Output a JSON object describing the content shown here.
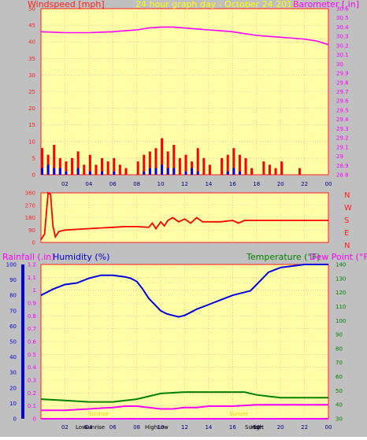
{
  "colors": {
    "plot_bg": "#ffffa8",
    "frame": "#c0c0c0",
    "grid": "#ff9a9a",
    "axis": "#ff2020",
    "wind": "#ff0000",
    "gust": "#0000ff",
    "baro": "#ff00ff",
    "humidity": "#0000e0",
    "temperature": "#008000",
    "dew_point": "#ff00ff",
    "rain": "#ff00ff",
    "title": "#ffff00"
  },
  "header": {
    "left_label": "Windspeed [mph]",
    "title": "24 hour graph day - October 24 2015",
    "right_label": "Barometer [.in]"
  },
  "direction_letters": [
    "N",
    "W",
    "S",
    "E",
    "N"
  ],
  "lower_labels": {
    "rainfall": "Rainfall (.in)",
    "humidity": "Humidity (%)",
    "temperature": "Temperature (°F)",
    "dew_point": "Dew Point (°F)"
  },
  "sun_labels": [
    "Sunrise",
    "Sunset"
  ],
  "extreme_labels": [
    "Low",
    "High",
    "Low",
    "High"
  ],
  "faint_labels": [
    "Sunrise",
    "Sunset"
  ],
  "chart_data": [
    {
      "type": "bar",
      "title": "24 hour graph day - October 24 2015",
      "x_tick_labels": [
        "02",
        "04",
        "06",
        "08",
        "10",
        "12",
        "14",
        "16",
        "18",
        "20",
        "22",
        "00"
      ],
      "ylabel": "Windspeed [mph]",
      "ylim": [
        0,
        50
      ],
      "y_ticks": [
        0,
        5,
        10,
        15,
        20,
        25,
        30,
        35,
        40,
        45,
        50
      ],
      "y2label": "Barometer [.in]",
      "y2lim": [
        28.8,
        30.6
      ],
      "y2_ticks": [
        "28.8",
        "28.9",
        "29",
        "29.1",
        "29.2",
        "29.3",
        "29.4",
        "29.5",
        "29.6",
        "29.7",
        "29.8",
        "29.9",
        "30",
        "30.1",
        "30.2",
        "30.3",
        "30.4",
        "30.5",
        "30.6"
      ],
      "grid": true,
      "series": [
        {
          "name": "Windspeed [mph]",
          "type": "bar",
          "x": [
            0,
            0.5,
            1,
            1.5,
            2,
            2.5,
            3,
            3.5,
            4,
            4.5,
            5,
            5.5,
            6,
            6.5,
            7,
            8,
            8.5,
            9,
            9.5,
            10,
            10.5,
            11,
            11.5,
            12,
            12.5,
            13,
            13.5,
            14,
            15,
            15.5,
            16,
            16.5,
            17,
            17.5,
            18.5,
            19,
            19.5,
            20,
            21.5
          ],
          "values": [
            8,
            6,
            9,
            5,
            4,
            5,
            7,
            3,
            6,
            3,
            5,
            4,
            5,
            3,
            2,
            4,
            6,
            7,
            8,
            11,
            7,
            9,
            5,
            6,
            4,
            8,
            5,
            3,
            5,
            6,
            8,
            6,
            5,
            2,
            4,
            3,
            2,
            4,
            2
          ]
        },
        {
          "name": "Gust",
          "type": "bar",
          "x": [
            0,
            0.5,
            1,
            1.5,
            2,
            3,
            4,
            5,
            6,
            8.5,
            9,
            9.5,
            10,
            10.5,
            11,
            12,
            12.5,
            13,
            15.5,
            16,
            16.5
          ],
          "values": [
            2,
            3,
            2,
            2,
            1,
            2,
            1,
            1,
            1,
            1,
            2,
            2,
            3,
            2,
            2,
            1,
            2,
            1,
            1,
            2,
            1
          ]
        },
        {
          "name": "Barometer [.in]",
          "type": "line",
          "x": [
            0,
            2,
            4,
            6,
            7,
            8,
            9,
            10,
            11,
            12,
            13,
            14,
            15,
            16,
            17,
            18,
            19,
            20,
            21,
            22,
            23,
            24
          ],
          "values": [
            30.35,
            30.34,
            30.34,
            30.35,
            30.36,
            30.37,
            30.39,
            30.4,
            30.4,
            30.39,
            30.38,
            30.37,
            30.36,
            30.35,
            30.33,
            30.31,
            30.3,
            30.29,
            30.28,
            30.27,
            30.25,
            30.21
          ]
        }
      ]
    },
    {
      "type": "scatter",
      "ylabel": "Wind Direction",
      "ylim": [
        0,
        360
      ],
      "y_ticks": [
        0,
        90,
        180,
        270,
        360
      ],
      "series": [
        {
          "name": "Wind Direction",
          "x": [
            0,
            0.3,
            0.6,
            0.8,
            1,
            1.2,
            1.5,
            2,
            3,
            4,
            5,
            6,
            7,
            8,
            9,
            9.3,
            9.6,
            10,
            10.3,
            10.6,
            11,
            11.5,
            12,
            12.5,
            13,
            13.5,
            14,
            15,
            16,
            16.5,
            17,
            18,
            19,
            20,
            21,
            22,
            23,
            24
          ],
          "values": [
            20,
            60,
            360,
            350,
            120,
            40,
            80,
            90,
            95,
            100,
            105,
            110,
            115,
            115,
            110,
            140,
            100,
            150,
            120,
            160,
            180,
            150,
            170,
            140,
            180,
            150,
            150,
            150,
            160,
            140,
            160,
            160,
            160,
            160,
            160,
            160,
            160,
            160
          ]
        }
      ]
    },
    {
      "type": "line",
      "x_tick_labels": [
        "02",
        "04",
        "06",
        "08",
        "10",
        "12",
        "14",
        "16",
        "18",
        "20",
        "22",
        "00"
      ],
      "ylabel": "Rainfall (.in)",
      "ylim": [
        0,
        1.2
      ],
      "y_ticks": [
        "0",
        "0.1",
        "0.2",
        "0.3",
        "0.4",
        "0.5",
        "0.6",
        "0.7",
        "0.8",
        "0.9",
        "1",
        "1.1",
        "1.2"
      ],
      "y2label": "Humidity (%)",
      "y2lim": [
        0,
        100
      ],
      "y2_ticks": [
        0,
        10,
        20,
        30,
        40,
        50,
        60,
        70,
        80,
        90,
        100
      ],
      "y3label": "Temperature (°F)",
      "y3lim": [
        30,
        140
      ],
      "y3_ticks": [
        30,
        40,
        50,
        60,
        70,
        80,
        90,
        100,
        110,
        120,
        130,
        140
      ],
      "grid": true,
      "series": [
        {
          "name": "Humidity (%)",
          "x": [
            0,
            0.5,
            1,
            2,
            3,
            4,
            5,
            6,
            7,
            7.5,
            8,
            8.5,
            9,
            9.5,
            10,
            10.5,
            11,
            11.5,
            12,
            12.5,
            13,
            14,
            15,
            16,
            17,
            17.5,
            18,
            19,
            20,
            21,
            22,
            23,
            24
          ],
          "values": [
            80,
            82,
            84,
            87,
            88,
            91,
            93,
            93,
            92,
            91,
            89,
            84,
            78,
            74,
            70,
            68,
            67,
            66,
            67,
            69,
            71,
            74,
            77,
            80,
            82,
            83,
            87,
            95,
            98,
            99,
            100,
            100,
            100
          ]
        },
        {
          "name": "Temperature (°F)",
          "x": [
            0,
            2,
            4,
            6,
            8,
            9,
            10,
            12,
            14,
            16,
            17,
            18,
            19,
            20,
            22,
            24
          ],
          "values": [
            44,
            43,
            42,
            42,
            44,
            46,
            48,
            49,
            49,
            49,
            49,
            47,
            46,
            45,
            45,
            45
          ]
        },
        {
          "name": "Dew Point (°F)",
          "x": [
            0,
            2,
            4,
            6,
            7,
            8,
            9,
            10,
            11,
            12,
            13,
            14,
            16,
            18,
            20,
            22,
            24
          ],
          "values": [
            36,
            36,
            37,
            38,
            39,
            39,
            38,
            37,
            37,
            38,
            38,
            39,
            39,
            40,
            40,
            40,
            40
          ]
        },
        {
          "name": "Rainfall (.in)",
          "x": [
            0,
            24
          ],
          "values": [
            0,
            0
          ]
        }
      ]
    }
  ]
}
